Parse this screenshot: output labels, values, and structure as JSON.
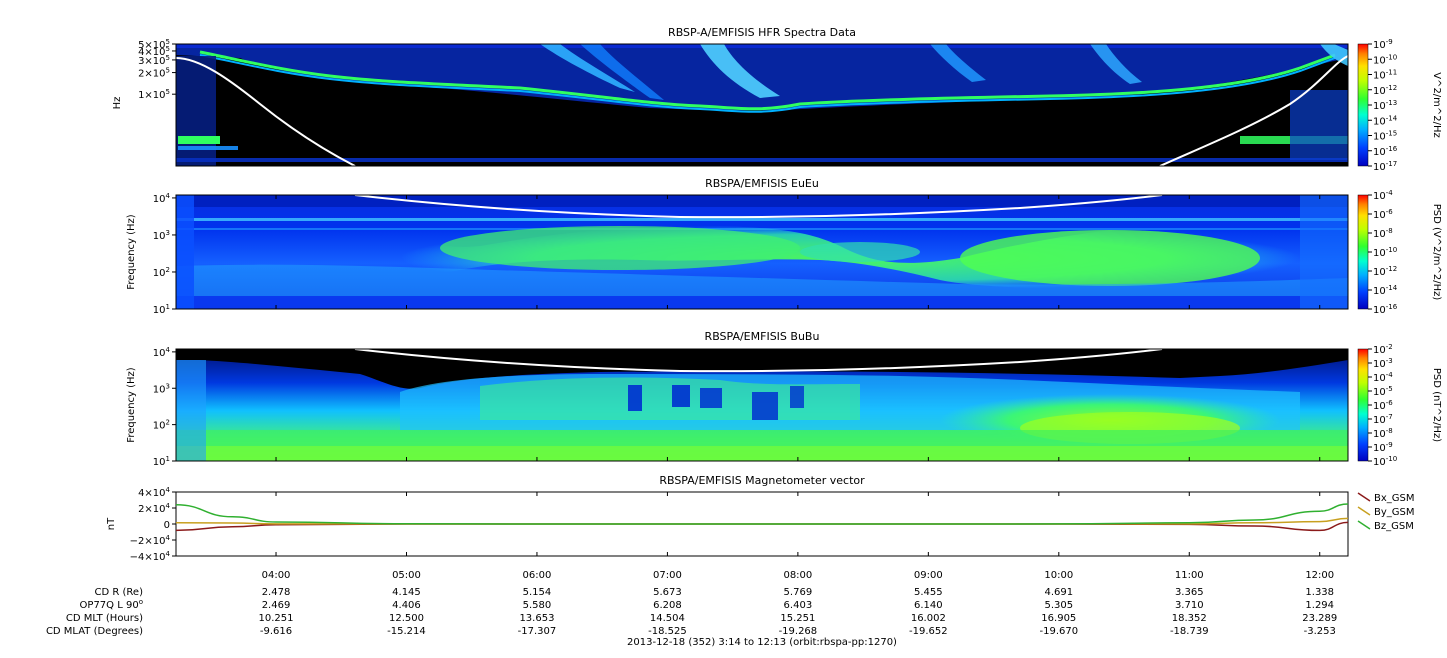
{
  "chart_data": [
    {
      "type": "heatmap",
      "title": "RBSP-A/EMFISIS  HFR Spectra Data",
      "ylabel": "Hz",
      "y_scale": "log",
      "y_ticks": [
        {
          "label": "1×10",
          "exp": "5",
          "value": 100000
        },
        {
          "label": "2×10",
          "exp": "5",
          "value": 200000
        },
        {
          "label": "3×10",
          "exp": "5",
          "value": 300000
        },
        {
          "label": "4×10",
          "exp": "5",
          "value": 400000
        },
        {
          "label": "5×10",
          "exp": "5",
          "value": 500000
        }
      ],
      "ylim": [
        10000,
        500000
      ],
      "colorbar": {
        "label": "V^2/m^2/Hz",
        "scale": "log",
        "ticks": [
          {
            "label": "10",
            "exp": "-9"
          },
          {
            "label": "10",
            "exp": "-10"
          },
          {
            "label": "10",
            "exp": "-11"
          },
          {
            "label": "10",
            "exp": "-12"
          },
          {
            "label": "10",
            "exp": "-13"
          },
          {
            "label": "10",
            "exp": "-14"
          },
          {
            "label": "10",
            "exp": "-15"
          },
          {
            "label": "10",
            "exp": "-16"
          },
          {
            "label": "10",
            "exp": "-17"
          }
        ]
      }
    },
    {
      "type": "heatmap",
      "title": "RBSPA/EMFISIS  EuEu",
      "ylabel": "Frequency (Hz)",
      "y_scale": "log",
      "y_ticks": [
        {
          "label": "10",
          "exp": "1",
          "value": 10
        },
        {
          "label": "10",
          "exp": "2",
          "value": 100
        },
        {
          "label": "10",
          "exp": "3",
          "value": 1000
        },
        {
          "label": "10",
          "exp": "4",
          "value": 10000
        }
      ],
      "ylim": [
        10,
        12000
      ],
      "colorbar": {
        "label": "PSD (V^2/m^2/Hz)",
        "scale": "log",
        "ticks": [
          {
            "label": "10",
            "exp": "-4"
          },
          {
            "label": "10",
            "exp": "-6"
          },
          {
            "label": "10",
            "exp": "-8"
          },
          {
            "label": "10",
            "exp": "-10"
          },
          {
            "label": "10",
            "exp": "-12"
          },
          {
            "label": "10",
            "exp": "-14"
          },
          {
            "label": "10",
            "exp": "-16"
          }
        ]
      }
    },
    {
      "type": "heatmap",
      "title": "RBSPA/EMFISIS  BuBu",
      "ylabel": "Frequency (Hz)",
      "y_scale": "log",
      "y_ticks": [
        {
          "label": "10",
          "exp": "1",
          "value": 10
        },
        {
          "label": "10",
          "exp": "2",
          "value": 100
        },
        {
          "label": "10",
          "exp": "3",
          "value": 1000
        },
        {
          "label": "10",
          "exp": "4",
          "value": 10000
        }
      ],
      "ylim": [
        10,
        12000
      ],
      "colorbar": {
        "label": "PSD (nT^2/Hz)",
        "scale": "log",
        "ticks": [
          {
            "label": "10",
            "exp": "-2"
          },
          {
            "label": "10",
            "exp": "-3"
          },
          {
            "label": "10",
            "exp": "-4"
          },
          {
            "label": "10",
            "exp": "-5"
          },
          {
            "label": "10",
            "exp": "-6"
          },
          {
            "label": "10",
            "exp": "-7"
          },
          {
            "label": "10",
            "exp": "-8"
          },
          {
            "label": "10",
            "exp": "-9"
          },
          {
            "label": "10",
            "exp": "-10"
          }
        ]
      }
    },
    {
      "type": "line",
      "title": "RBSPA/EMFISIS  Magnetometer vector",
      "ylabel": "nT",
      "ylim": [
        -40000,
        40000
      ],
      "y_ticks": [
        {
          "label": "4×10",
          "exp": "4",
          "value": 40000
        },
        {
          "label": "2×10",
          "exp": "4",
          "value": 20000
        },
        {
          "label": "0",
          "exp": "",
          "value": 0
        },
        {
          "label": "−2×10",
          "exp": "4",
          "value": -20000
        },
        {
          "label": "−4×10",
          "exp": "4",
          "value": -40000
        }
      ],
      "legend_position": "right",
      "x": [
        "03:14",
        "03:40",
        "04:00",
        "05:00",
        "06:00",
        "07:00",
        "08:00",
        "09:00",
        "10:00",
        "11:00",
        "11:30",
        "12:00",
        "12:13"
      ],
      "series": [
        {
          "name": "Bx_GSM",
          "color": "#8b1a1a",
          "values": [
            -8000,
            -3500,
            -1000,
            0,
            0,
            0,
            0,
            0,
            0,
            -500,
            -2500,
            -8000,
            2000
          ]
        },
        {
          "name": "By_GSM",
          "color": "#c8a020",
          "values": [
            1500,
            1200,
            200,
            0,
            0,
            0,
            0,
            0,
            0,
            200,
            1500,
            3000,
            7000
          ]
        },
        {
          "name": "Bz_GSM",
          "color": "#30b030",
          "values": [
            24000,
            9000,
            2500,
            300,
            0,
            0,
            0,
            0,
            100,
            1500,
            5000,
            16000,
            25000
          ]
        }
      ]
    }
  ],
  "time_axis": {
    "start": "03:14",
    "end": "12:13",
    "ticks": [
      "04:00",
      "05:00",
      "06:00",
      "07:00",
      "08:00",
      "09:00",
      "10:00",
      "11:00",
      "12:00"
    ]
  },
  "ephemeris": [
    {
      "label": "CD R (Re)",
      "label_sup": "",
      "values": [
        "2.478",
        "4.145",
        "5.154",
        "5.673",
        "5.769",
        "5.455",
        "4.691",
        "3.365",
        "1.338"
      ]
    },
    {
      "label": "OP77Q L 90",
      "label_sup": "o",
      "values": [
        "2.469",
        "4.406",
        "5.580",
        "6.208",
        "6.403",
        "6.140",
        "5.305",
        "3.710",
        "1.294"
      ]
    },
    {
      "label": "CD MLT (Hours)",
      "label_sup": "",
      "values": [
        "10.251",
        "12.500",
        "13.653",
        "14.504",
        "15.251",
        "16.002",
        "16.905",
        "18.352",
        "23.289"
      ]
    },
    {
      "label": "CD MLAT (Degrees)",
      "label_sup": "",
      "values": [
        "-9.616",
        "-15.214",
        "-17.307",
        "-18.525",
        "-19.268",
        "-19.652",
        "-19.670",
        "-18.739",
        "-3.253"
      ]
    }
  ],
  "footer": "2013-12-18 (352) 3:14 to 12:13 (orbit:rbspa-pp:1270)"
}
